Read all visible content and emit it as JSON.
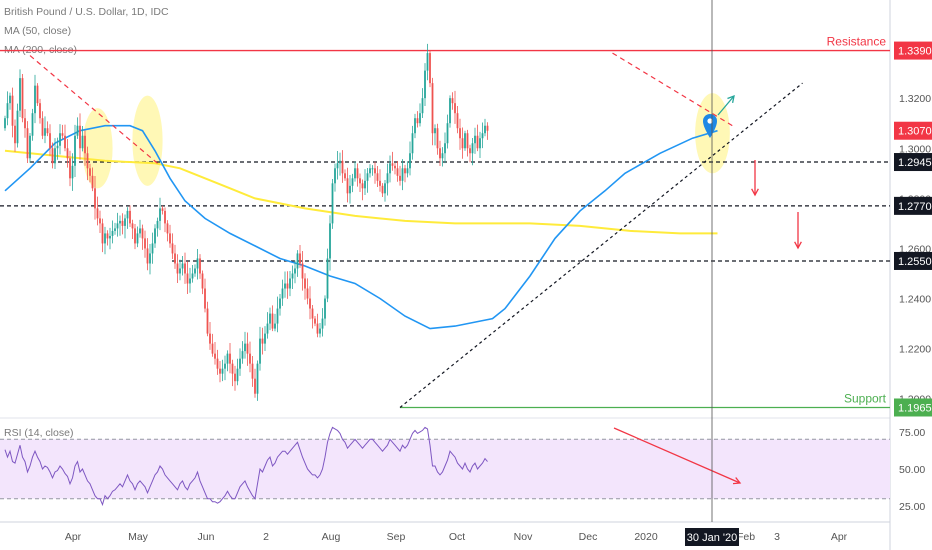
{
  "header": {
    "symbol": "British Pound / U.S. Dollar, 1D, IDC",
    "ma50": "MA (50, close)",
    "ma200": "MA (200, close)",
    "rsi": "RSI (14, close)"
  },
  "colors": {
    "up": "#26a69a",
    "down": "#ef5350",
    "ma50": "#2196f3",
    "ma200": "#ffeb3b",
    "resistance": "#f23645",
    "support": "#4caf50",
    "rsi_line": "#7e57c2",
    "rsi_band": "#f3e5fc",
    "highlight": "#fff59d"
  },
  "chart_data": {
    "type": "candlestick",
    "price_axis": {
      "ticks": [
        "1.3200",
        "1.3000",
        "1.2800",
        "1.2600",
        "1.2400",
        "1.2200",
        "1.2000"
      ],
      "tick_values": [
        1.32,
        1.3,
        1.28,
        1.26,
        1.24,
        1.22,
        1.2
      ],
      "ylim": [
        1.1935,
        1.356
      ]
    },
    "time_axis": {
      "labels": [
        "Apr",
        "May",
        "Jun",
        "2",
        "Aug",
        "Sep",
        "Oct",
        "Nov",
        "Dec",
        "2020",
        "Feb",
        "3",
        "Apr"
      ],
      "cursor_label": "30 Jan '20"
    },
    "levels": [
      {
        "name": "Resistance",
        "value": 1.339,
        "label": "1.3390",
        "style": "solid",
        "color": "#f23645"
      },
      {
        "name": "",
        "value": 1.2945,
        "label": "1.2945",
        "style": "dashed",
        "color": "#131722"
      },
      {
        "name": "",
        "value": 1.277,
        "label": "1.2770",
        "style": "dashed",
        "color": "#131722"
      },
      {
        "name": "",
        "value": 1.255,
        "label": "1.2550",
        "style": "dashed",
        "color": "#131722"
      },
      {
        "name": "Support",
        "value": 1.1965,
        "label": "1.1965",
        "style": "solid",
        "color": "#4caf50"
      }
    ],
    "last_price": {
      "value": 1.307,
      "label": "1.3070"
    },
    "series": [
      {
        "name": "price",
        "close": [
          1.312,
          1.318,
          1.321,
          1.309,
          1.302,
          1.315,
          1.328,
          1.312,
          1.308,
          1.296,
          1.305,
          1.314,
          1.325,
          1.318,
          1.312,
          1.305,
          1.308,
          1.306,
          1.3,
          1.294,
          1.3,
          1.301,
          1.306,
          1.305,
          1.3,
          1.296,
          1.288,
          1.293,
          1.305,
          1.309,
          1.3,
          1.305,
          1.298,
          1.292,
          1.289,
          1.284,
          1.276,
          1.272,
          1.27,
          1.262,
          1.266,
          1.264,
          1.265,
          1.267,
          1.268,
          1.27,
          1.271,
          1.269,
          1.272,
          1.275,
          1.27,
          1.268,
          1.262,
          1.266,
          1.268,
          1.264,
          1.26,
          1.254,
          1.258,
          1.262,
          1.268,
          1.271,
          1.276,
          1.275,
          1.27,
          1.266,
          1.262,
          1.258,
          1.254,
          1.25,
          1.252,
          1.254,
          1.25,
          1.246,
          1.248,
          1.25,
          1.252,
          1.256,
          1.25,
          1.244,
          1.236,
          1.226,
          1.222,
          1.218,
          1.216,
          1.212,
          1.21,
          1.212,
          1.214,
          1.218,
          1.214,
          1.21,
          1.207,
          1.212,
          1.216,
          1.219,
          1.222,
          1.218,
          1.214,
          1.208,
          1.202,
          1.214,
          1.224,
          1.222,
          1.226,
          1.23,
          1.234,
          1.228,
          1.23,
          1.236,
          1.24,
          1.244,
          1.246,
          1.244,
          1.248,
          1.25,
          1.252,
          1.258,
          1.254,
          1.248,
          1.244,
          1.24,
          1.236,
          1.232,
          1.23,
          1.226,
          1.228,
          1.232,
          1.24,
          1.256,
          1.27,
          1.286,
          1.292,
          1.294,
          1.295,
          1.29,
          1.288,
          1.282,
          1.285,
          1.288,
          1.292,
          1.288,
          1.286,
          1.284,
          1.287,
          1.29,
          1.292,
          1.292,
          1.29,
          1.287,
          1.285,
          1.282,
          1.286,
          1.29,
          1.294,
          1.293,
          1.292,
          1.289,
          1.287,
          1.292,
          1.29,
          1.292,
          1.298,
          1.306,
          1.312,
          1.31,
          1.314,
          1.32,
          1.331,
          1.338,
          1.326,
          1.306,
          1.308,
          1.3,
          1.296,
          1.298,
          1.302,
          1.31,
          1.32,
          1.318,
          1.314,
          1.308,
          1.304,
          1.3,
          1.306,
          1.3,
          1.298,
          1.302,
          1.305,
          1.3,
          1.304,
          1.306,
          1.309,
          1.307
        ],
        "rsi": [
          63,
          58,
          62,
          55,
          54,
          60,
          66,
          58,
          55,
          48,
          52,
          58,
          62,
          58,
          55,
          50,
          52,
          51,
          48,
          44,
          48,
          49,
          52,
          50,
          47,
          45,
          40,
          44,
          52,
          55,
          48,
          50,
          46,
          42,
          40,
          36,
          32,
          30,
          30,
          26,
          32,
          30,
          32,
          35,
          36,
          38,
          40,
          38,
          42,
          46,
          42,
          40,
          36,
          40,
          42,
          40,
          38,
          34,
          38,
          42,
          46,
          48,
          52,
          50,
          46,
          44,
          42,
          40,
          38,
          36,
          40,
          42,
          38,
          36,
          40,
          42,
          44,
          48,
          42,
          38,
          34,
          30,
          30,
          28,
          28,
          27,
          28,
          30,
          32,
          35,
          32,
          30,
          30,
          34,
          38,
          40,
          42,
          38,
          35,
          32,
          30,
          40,
          50,
          48,
          52,
          56,
          58,
          52,
          54,
          58,
          60,
          62,
          62,
          60,
          62,
          64,
          66,
          68,
          63,
          58,
          54,
          50,
          48,
          46,
          46,
          44,
          46,
          50,
          58,
          68,
          74,
          78,
          77,
          76,
          74,
          70,
          68,
          64,
          66,
          68,
          70,
          68,
          66,
          64,
          66,
          68,
          70,
          70,
          68,
          66,
          64,
          62,
          64,
          66,
          70,
          68,
          66,
          64,
          62,
          66,
          64,
          66,
          70,
          74,
          76,
          74,
          75,
          76,
          78,
          77,
          66,
          52,
          52,
          48,
          46,
          48,
          52,
          56,
          62,
          60,
          58,
          54,
          52,
          50,
          54,
          50,
          48,
          52,
          54,
          50,
          52,
          54,
          57,
          55
        ],
        "rsi_ticks": [
          "75.00",
          "50.00",
          "25.00"
        ],
        "rsi_tick_values": [
          75,
          50,
          25
        ],
        "rsi_ylim": [
          17,
          83
        ],
        "rsi_bands": [
          70,
          30
        ]
      },
      {
        "name": "MA (50, close)",
        "points": [
          [
            0,
            1.283
          ],
          [
            10,
            1.292
          ],
          [
            20,
            1.302
          ],
          [
            30,
            1.307
          ],
          [
            40,
            1.309
          ],
          [
            50,
            1.309
          ],
          [
            55,
            1.307
          ],
          [
            60,
            1.299
          ],
          [
            66,
            1.288
          ],
          [
            72,
            1.279
          ],
          [
            80,
            1.272
          ],
          [
            90,
            1.266
          ],
          [
            100,
            1.261
          ],
          [
            110,
            1.256
          ],
          [
            120,
            1.253
          ],
          [
            130,
            1.249
          ],
          [
            140,
            1.246
          ],
          [
            150,
            1.24
          ],
          [
            160,
            1.233
          ],
          [
            170,
            1.228
          ],
          [
            180,
            1.229
          ],
          [
            190,
            1.231
          ],
          [
            195,
            1.232
          ],
          [
            200,
            1.236
          ],
          [
            210,
            1.249
          ],
          [
            220,
            1.264
          ],
          [
            230,
            1.275
          ],
          [
            240,
            1.283
          ],
          [
            248,
            1.29
          ],
          [
            255,
            1.294
          ],
          [
            262,
            1.298
          ],
          [
            275,
            1.304
          ],
          [
            285,
            1.307
          ]
        ]
      },
      {
        "name": "MA (200, close)",
        "points": [
          [
            0,
            1.299
          ],
          [
            20,
            1.297
          ],
          [
            40,
            1.295
          ],
          [
            60,
            1.294
          ],
          [
            70,
            1.292
          ],
          [
            80,
            1.288
          ],
          [
            90,
            1.284
          ],
          [
            100,
            1.28
          ],
          [
            110,
            1.278
          ],
          [
            120,
            1.276
          ],
          [
            140,
            1.273
          ],
          [
            160,
            1.271
          ],
          [
            180,
            1.27
          ],
          [
            200,
            1.27
          ],
          [
            210,
            1.27
          ],
          [
            230,
            1.269
          ],
          [
            250,
            1.267
          ],
          [
            270,
            1.266
          ],
          [
            285,
            1.266
          ]
        ]
      }
    ]
  }
}
